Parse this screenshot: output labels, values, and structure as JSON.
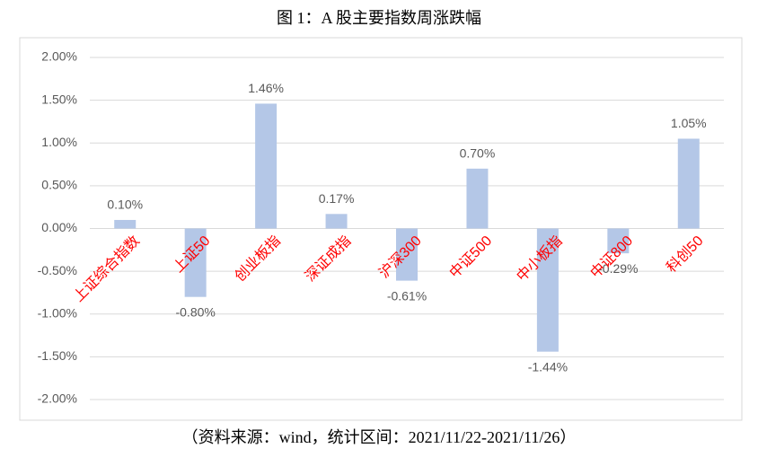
{
  "chart_data": {
    "type": "bar",
    "title": "图 1：A 股主要指数周涨跌幅",
    "footnote": "（资料来源：wind，统计区间：2021/11/22-2021/11/26）",
    "categories": [
      "上证综合指数",
      "上证50",
      "创业板指",
      "深证成指",
      "沪深300",
      "中证500",
      "中小板指",
      "中证800",
      "科创50"
    ],
    "values": [
      0.1,
      -0.8,
      1.46,
      0.17,
      -0.61,
      0.7,
      -1.44,
      -0.29,
      1.05
    ],
    "value_labels": [
      "0.10%",
      "-0.80%",
      "1.46%",
      "0.17%",
      "-0.61%",
      "0.70%",
      "-1.44%",
      "-0.29%",
      "1.05%"
    ],
    "color": "#b4c7e7",
    "category_label_color": "#ff0000",
    "ylim": [
      -2,
      2
    ],
    "yticks": [
      {
        "value": -2,
        "label": "-2.00%"
      },
      {
        "value": -1.5,
        "label": "-1.50%"
      },
      {
        "value": -1,
        "label": "-1.00%"
      },
      {
        "value": -0.5,
        "label": "-0.50%"
      },
      {
        "value": 0,
        "label": "0.00%"
      },
      {
        "value": 0.5,
        "label": "0.50%"
      },
      {
        "value": 1,
        "label": "1.00%"
      },
      {
        "value": 1.5,
        "label": "1.50%"
      },
      {
        "value": 2,
        "label": "2.00%"
      }
    ],
    "grid": true
  }
}
